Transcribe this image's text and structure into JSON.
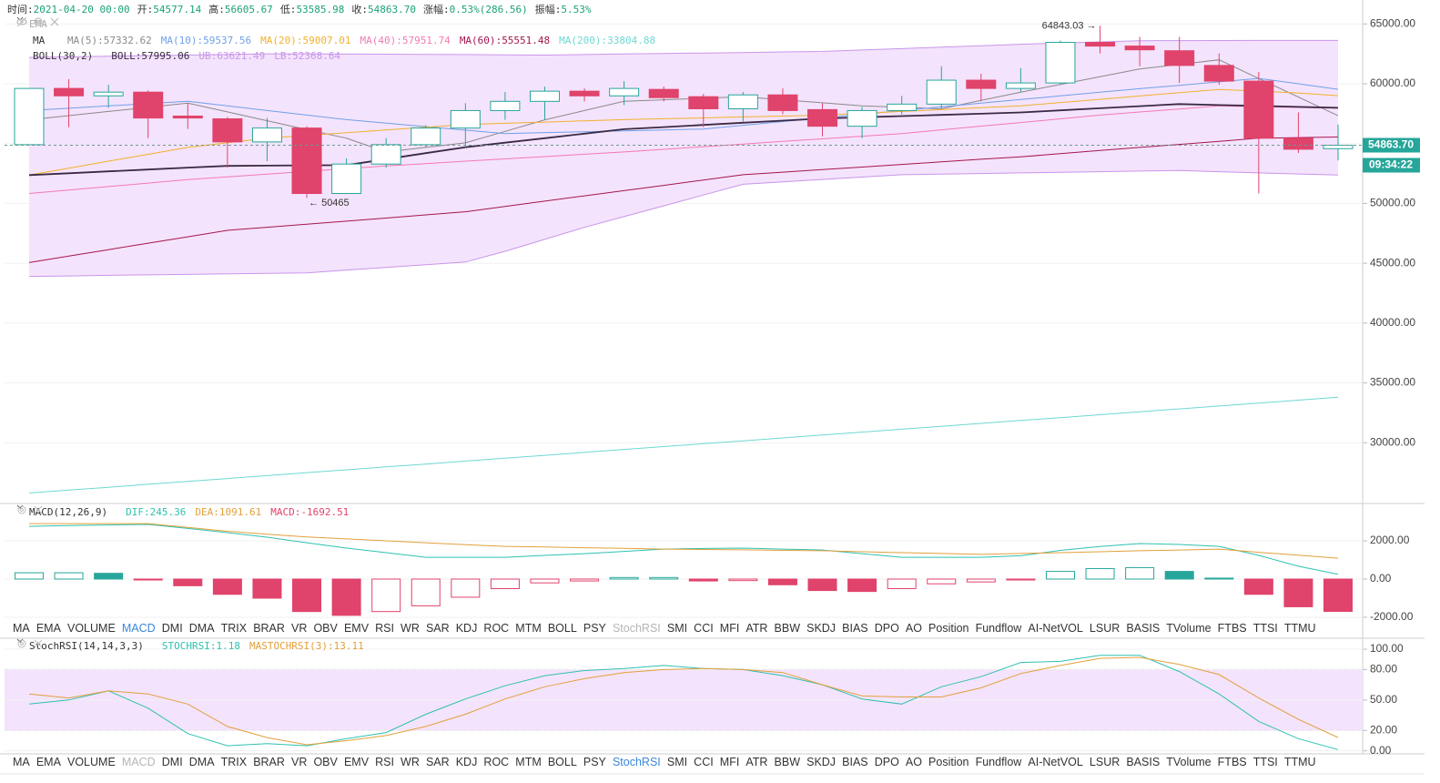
{
  "header": [
    {
      "label": "时间:",
      "value": "2021-04-20 00:00"
    },
    {
      "label": "开:",
      "value": "54577.14"
    },
    {
      "label": "高:",
      "value": "56605.67"
    },
    {
      "label": "低:",
      "value": "53585.98"
    },
    {
      "label": "收:",
      "value": "54863.70"
    },
    {
      "label": "涨幅:",
      "value": "0.53%(286.56)"
    },
    {
      "label": "振幅:",
      "value": "5.53%"
    }
  ],
  "indicator_tabs": [
    "MA",
    "EMA",
    "VOLUME",
    "MACD",
    "DMI",
    "DMA",
    "TRIX",
    "BRAR",
    "VR",
    "OBV",
    "EMV",
    "RSI",
    "WR",
    "SAR",
    "KDJ",
    "ROC",
    "MTM",
    "BOLL",
    "PSY",
    "StochRSI",
    "SMI",
    "CCI",
    "MFI",
    "ATR",
    "BBW",
    "SKDJ",
    "BIAS",
    "DPO",
    "AO",
    "Position",
    "Fundflow",
    "AI-NetVOL",
    "LSUR",
    "BASIS",
    "TVolume",
    "FTBS",
    "TTSI",
    "TTMU"
  ],
  "chart_data": [
    {
      "type": "candlestick",
      "grid": true,
      "up_color": "#26a69a",
      "down_color": "#e0436b",
      "band_fill": "#f4e3fc",
      "categories": [
        null,
        null,
        null,
        null,
        null,
        null,
        null,
        null,
        null,
        null,
        null,
        null,
        null,
        null,
        null,
        null,
        null,
        null,
        null,
        null,
        null,
        null,
        null,
        null,
        null,
        null,
        null,
        null,
        null,
        null,
        null,
        null,
        null,
        null
      ],
      "open": [
        54910,
        59610,
        58990,
        59300,
        57300,
        57070,
        55140,
        56300,
        50830,
        53290,
        54910,
        56300,
        57760,
        58530,
        59380,
        58990,
        59530,
        58920,
        57910,
        59070,
        57840,
        56450,
        57760,
        58300,
        60300,
        59610,
        60070,
        63460,
        63150,
        62760,
        61530,
        60220,
        55450,
        54577.14
      ],
      "close": [
        59610,
        58990,
        59300,
        57140,
        57140,
        55140,
        56300,
        50830,
        53290,
        54910,
        56300,
        57760,
        58530,
        59380,
        58990,
        59610,
        58840,
        57910,
        59070,
        57760,
        56450,
        57760,
        58300,
        60300,
        59610,
        60070,
        63460,
        63150,
        62840,
        61530,
        60220,
        55450,
        54530,
        54863.7
      ],
      "high": [
        59610,
        60380,
        59920,
        59450,
        58380,
        57220,
        57140,
        56450,
        53760,
        55450,
        56530,
        58380,
        59300,
        59760,
        59610,
        60220,
        59760,
        59150,
        59300,
        59610,
        58380,
        58070,
        58990,
        61460,
        60840,
        61300,
        63610,
        64843.03,
        63920,
        63920,
        62530,
        60990,
        57610,
        56605.67
      ],
      "low": [
        54910,
        56370,
        57990,
        55450,
        56220,
        52990,
        53530,
        50465,
        50830,
        52990,
        54680,
        54680,
        56990,
        56990,
        58530,
        58220,
        58530,
        56370,
        56840,
        57450,
        55600,
        55450,
        57450,
        57910,
        58530,
        59300,
        59920,
        62530,
        61460,
        60070,
        59920,
        50830,
        54220,
        53585.98
      ],
      "ylim": [
        25000,
        67000
      ],
      "yticks": [
        {
          "value": 30000,
          "label": "30000.00"
        },
        {
          "value": 35000,
          "label": "35000.00"
        },
        {
          "value": 40000,
          "label": "40000.00"
        },
        {
          "value": 45000,
          "label": "45000.00"
        },
        {
          "value": 50000,
          "label": "50000.00"
        },
        {
          "value": 55000,
          "label": "55000.00"
        },
        {
          "value": 60000,
          "label": "60000.00"
        },
        {
          "value": 65000,
          "label": "65000.00"
        }
      ],
      "annotations": {
        "high": "64843.03 →",
        "low": "← 50465"
      },
      "price_tag": {
        "value": 54863.7,
        "label": "54863.70",
        "countdown": "09:34:22",
        "color": "#26a69a"
      },
      "overlays": [
        {
          "label": "EMA",
          "visible": false,
          "series": []
        },
        {
          "label": "MA",
          "visible": true,
          "series": [
            {
              "name": "MA(5)",
              "color": "#8a8a8a",
              "values": [
                56990,
                57340,
                57690,
                58030,
                58380,
                57650,
                56910,
                56180,
                55450,
                54300,
                54680,
                55060,
                56020,
                56990,
                57760,
                58530,
                58660,
                58790,
                58920,
                58660,
                58410,
                58150,
                58030,
                57910,
                58610,
                59300,
                59940,
                60590,
                61230,
                61620,
                62000,
                60440,
                58890,
                57332.62
              ]
            },
            {
              "name": "MA(10)",
              "color": "#6fa0e8",
              "values": [
                57760,
                57950,
                58150,
                58340,
                58530,
                58150,
                57760,
                57380,
                57000,
                56710,
                56420,
                56130,
                55840,
                55920,
                55990,
                56070,
                56140,
                56220,
                56530,
                56840,
                57140,
                57450,
                57760,
                58070,
                58380,
                58680,
                58990,
                59300,
                59590,
                59870,
                60160,
                60450,
                60000,
                59537.56
              ]
            },
            {
              "name": "MA(20)",
              "color": "#f2b12c",
              "values": [
                52370,
                52950,
                53530,
                54100,
                54680,
                55070,
                55450,
                55680,
                55910,
                56140,
                56370,
                56600,
                56700,
                56800,
                56900,
                57000,
                57080,
                57150,
                57230,
                57300,
                57380,
                57530,
                57690,
                57840,
                58000,
                58150,
                58430,
                58700,
                58980,
                59260,
                59530,
                59380,
                59230,
                59007.01
              ]
            },
            {
              "name": "MA(40)",
              "color": "#f27ab3",
              "values": [
                50830,
                51120,
                51410,
                51700,
                51990,
                52220,
                52450,
                52680,
                52910,
                53140,
                53330,
                53530,
                53720,
                53910,
                54110,
                54300,
                54520,
                54740,
                54960,
                55180,
                55400,
                55620,
                55840,
                56150,
                56460,
                56760,
                57070,
                57380,
                57640,
                57890,
                58150,
                58080,
                58020,
                57951.74
              ]
            },
            {
              "name": "MA(60)",
              "color": "#a3174f",
              "values": [
                45060,
                45600,
                46140,
                46680,
                47210,
                47750,
                48010,
                48270,
                48520,
                48780,
                49040,
                49300,
                49740,
                50190,
                50630,
                51070,
                51510,
                51960,
                52400,
                52610,
                52830,
                53040,
                53260,
                53470,
                53690,
                53900,
                54160,
                54420,
                54680,
                54930,
                55190,
                55450,
                55500,
                55551.48
              ]
            },
            {
              "name": "MA(200)",
              "color": "#6fd8d2",
              "values": [
                25800,
                26040,
                26280,
                26530,
                26770,
                27010,
                27250,
                27500,
                27740,
                27980,
                28220,
                28470,
                28710,
                28950,
                29190,
                29440,
                29680,
                29920,
                30160,
                30400,
                30650,
                30890,
                31130,
                31370,
                31620,
                31860,
                32100,
                32340,
                32590,
                32830,
                33070,
                33310,
                33560,
                33804.88
              ]
            }
          ]
        },
        {
          "label": "BOLL(30,2)",
          "visible": true,
          "band": true,
          "series": [
            {
              "name": "BOLL",
              "color": "#3b2a45",
              "values": [
                52370,
                52520,
                52680,
                52830,
                52990,
                53140,
                53160,
                53180,
                53200,
                53700,
                54200,
                54700,
                55080,
                55450,
                55830,
                56200,
                56380,
                56560,
                56740,
                56920,
                57100,
                57200,
                57300,
                57400,
                57500,
                57600,
                57780,
                57950,
                58130,
                58300,
                58220,
                58150,
                58070,
                57995.06
              ]
            },
            {
              "name": "UB",
              "color": "#c896ea",
              "values": [
                62200,
                62250,
                62300,
                62350,
                62400,
                62450,
                62500,
                62500,
                62480,
                62470,
                62450,
                62440,
                62420,
                62400,
                62440,
                62490,
                62530,
                62570,
                62610,
                62660,
                62700,
                62820,
                62940,
                63060,
                63180,
                63300,
                63400,
                63500,
                63600,
                63610,
                63615,
                63618,
                63620,
                63621.49
              ]
            },
            {
              "name": "LB",
              "color": "#c896ea",
              "values": [
                43900,
                43940,
                43990,
                44030,
                44070,
                44110,
                44160,
                44200,
                44430,
                44650,
                44880,
                45100,
                46000,
                47000,
                48000,
                48900,
                49800,
                50700,
                51600,
                51800,
                52000,
                52200,
                52400,
                52450,
                52500,
                52550,
                52600,
                52650,
                52700,
                52750,
                52650,
                52550,
                52460,
                52368.64
              ]
            }
          ]
        }
      ]
    },
    {
      "type": "macd",
      "title": "MACD(12,26,9)",
      "grid": true,
      "active_tab": "MACD",
      "muted_tab": "StochRSI",
      "ylim": [
        -2240,
        3860
      ],
      "yticks": [
        {
          "value": -2000,
          "label": "-2000.00"
        },
        {
          "value": 0,
          "label": "0.00"
        },
        {
          "value": 2000,
          "label": "2000.00"
        }
      ],
      "series": [
        {
          "name": "DIF",
          "color": "#2fc1b0",
          "values": [
            2760,
            2800,
            2830,
            2860,
            2650,
            2430,
            2190,
            1900,
            1620,
            1380,
            1140,
            1140,
            1140,
            1240,
            1330,
            1450,
            1570,
            1600,
            1620,
            1570,
            1520,
            1330,
            1140,
            1140,
            1140,
            1220,
            1500,
            1700,
            1860,
            1810,
            1710,
            1240,
            670,
            245.36
          ]
        },
        {
          "name": "DEA",
          "color": "#e2a03c",
          "values": [
            2900,
            2900,
            2900,
            2900,
            2700,
            2500,
            2350,
            2200,
            2100,
            2000,
            1900,
            1800,
            1710,
            1680,
            1640,
            1610,
            1570,
            1550,
            1530,
            1500,
            1480,
            1430,
            1380,
            1340,
            1290,
            1340,
            1380,
            1430,
            1480,
            1520,
            1570,
            1400,
            1250,
            1091.61
          ]
        },
        {
          "name": "MACD",
          "type": "histogram",
          "up_color": "#26a69a",
          "down_color": "#e0436b",
          "values": [
            330,
            330,
            300,
            -50,
            -350,
            -800,
            -1000,
            -1700,
            -1900,
            -1700,
            -1400,
            -950,
            -500,
            -200,
            -100,
            80,
            80,
            -100,
            -80,
            -300,
            -600,
            -650,
            -500,
            -250,
            -150,
            -50,
            400,
            550,
            600,
            400,
            50,
            -800,
            -1450,
            -1692.51
          ]
        }
      ]
    },
    {
      "type": "line",
      "title": "StochRSI(14,14,3,3)",
      "grid": true,
      "active_tab": "StochRSI",
      "muted_tab": "MACD",
      "band": [
        20,
        80
      ],
      "band_fill": "#f4e3fc",
      "ylim": [
        -3,
        109
      ],
      "yticks": [
        {
          "value": 0,
          "label": "0.00"
        },
        {
          "value": 20,
          "label": "20.00"
        },
        {
          "value": 50,
          "label": "50.00"
        },
        {
          "value": 80,
          "label": "80.00"
        },
        {
          "value": 100,
          "label": "100.00"
        }
      ],
      "series": [
        {
          "name": "STOCHRSI",
          "color": "#2fc1b0",
          "values": [
            46,
            50,
            59,
            42,
            17,
            5,
            7,
            5,
            12,
            18,
            36,
            51,
            64,
            74,
            79,
            81,
            84,
            81,
            80,
            74,
            65,
            51,
            46,
            63,
            73,
            87,
            88,
            94,
            94,
            78,
            56,
            29,
            12,
            1.18
          ]
        },
        {
          "name": "MASTOCHRSI(3)",
          "color": "#e2a03c",
          "values": [
            56,
            52,
            59,
            56,
            46,
            24,
            13,
            6,
            10,
            15,
            24,
            36,
            51,
            63,
            71,
            77,
            80,
            81,
            80,
            77,
            65,
            54,
            53,
            53,
            62,
            76,
            84,
            91,
            92,
            85,
            75,
            52,
            31,
            13.11
          ]
        }
      ]
    }
  ]
}
